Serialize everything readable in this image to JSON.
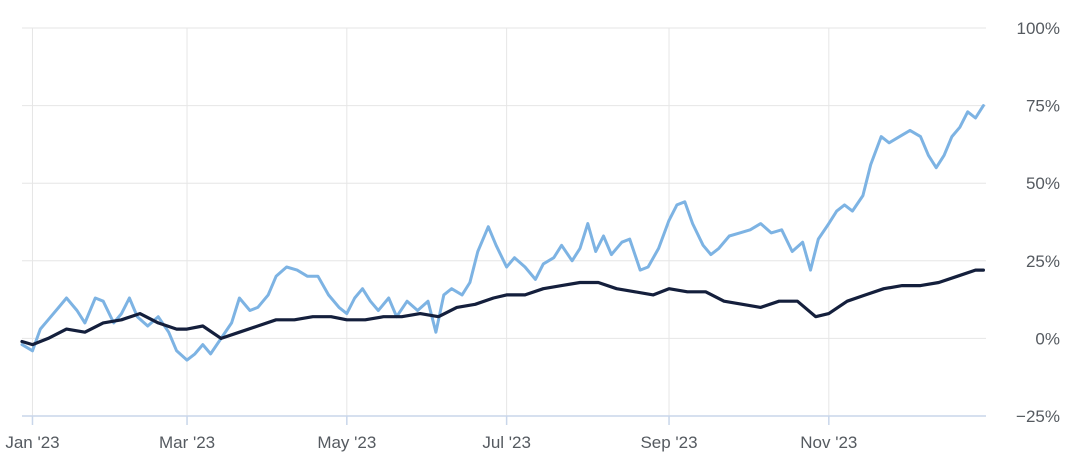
{
  "chart_data": {
    "type": "line",
    "title": "",
    "xlabel": "",
    "ylabel": "",
    "x_range": [
      "2022-12-28",
      "2023-12-31"
    ],
    "y_range": [
      -25,
      100
    ],
    "y_scale": "linear",
    "y_tick_labels": [
      {
        "value": 100,
        "label": "100%"
      },
      {
        "value": 75,
        "label": "75%"
      },
      {
        "value": 50,
        "label": "50%"
      },
      {
        "value": 25,
        "label": "25%"
      },
      {
        "value": 0,
        "label": "0%"
      },
      {
        "value": -25,
        "label": "−25%"
      }
    ],
    "x_tick_labels": [
      {
        "date": "2023-01-01",
        "label": "Jan '23"
      },
      {
        "date": "2023-03-01",
        "label": "Mar '23"
      },
      {
        "date": "2023-05-01",
        "label": "May '23"
      },
      {
        "date": "2023-07-01",
        "label": "Jul '23"
      },
      {
        "date": "2023-09-01",
        "label": "Sep '23"
      },
      {
        "date": "2023-11-01",
        "label": "Nov '23"
      }
    ],
    "grid": true,
    "legend": "none",
    "series": [
      {
        "color": "#7db3e3",
        "points": [
          [
            "2022-12-28",
            -2
          ],
          [
            "2023-01-01",
            -4
          ],
          [
            "2023-01-04",
            3
          ],
          [
            "2023-01-07",
            6
          ],
          [
            "2023-01-11",
            10
          ],
          [
            "2023-01-14",
            13
          ],
          [
            "2023-01-18",
            9
          ],
          [
            "2023-01-21",
            5
          ],
          [
            "2023-01-25",
            13
          ],
          [
            "2023-01-28",
            12
          ],
          [
            "2023-02-01",
            5
          ],
          [
            "2023-02-04",
            8
          ],
          [
            "2023-02-07",
            13
          ],
          [
            "2023-02-10",
            7
          ],
          [
            "2023-02-14",
            4
          ],
          [
            "2023-02-18",
            7
          ],
          [
            "2023-02-22",
            2
          ],
          [
            "2023-02-25",
            -4
          ],
          [
            "2023-03-01",
            -7
          ],
          [
            "2023-03-04",
            -5
          ],
          [
            "2023-03-07",
            -2
          ],
          [
            "2023-03-10",
            -5
          ],
          [
            "2023-03-14",
            0
          ],
          [
            "2023-03-18",
            5
          ],
          [
            "2023-03-21",
            13
          ],
          [
            "2023-03-25",
            9
          ],
          [
            "2023-03-28",
            10
          ],
          [
            "2023-04-01",
            14
          ],
          [
            "2023-04-04",
            20
          ],
          [
            "2023-04-08",
            23
          ],
          [
            "2023-04-12",
            22
          ],
          [
            "2023-04-16",
            20
          ],
          [
            "2023-04-20",
            20
          ],
          [
            "2023-04-24",
            14
          ],
          [
            "2023-04-28",
            10
          ],
          [
            "2023-05-01",
            8
          ],
          [
            "2023-05-04",
            13
          ],
          [
            "2023-05-07",
            16
          ],
          [
            "2023-05-10",
            12
          ],
          [
            "2023-05-13",
            9
          ],
          [
            "2023-05-17",
            13
          ],
          [
            "2023-05-20",
            7
          ],
          [
            "2023-05-24",
            12
          ],
          [
            "2023-05-28",
            9
          ],
          [
            "2023-06-01",
            12
          ],
          [
            "2023-06-04",
            2
          ],
          [
            "2023-06-07",
            14
          ],
          [
            "2023-06-10",
            16
          ],
          [
            "2023-06-14",
            14
          ],
          [
            "2023-06-17",
            18
          ],
          [
            "2023-06-20",
            28
          ],
          [
            "2023-06-24",
            36
          ],
          [
            "2023-06-27",
            30
          ],
          [
            "2023-07-01",
            23
          ],
          [
            "2023-07-04",
            26
          ],
          [
            "2023-07-08",
            23
          ],
          [
            "2023-07-12",
            19
          ],
          [
            "2023-07-15",
            24
          ],
          [
            "2023-07-19",
            26
          ],
          [
            "2023-07-22",
            30
          ],
          [
            "2023-07-26",
            25
          ],
          [
            "2023-07-29",
            29
          ],
          [
            "2023-08-01",
            37
          ],
          [
            "2023-08-04",
            28
          ],
          [
            "2023-08-07",
            33
          ],
          [
            "2023-08-10",
            27
          ],
          [
            "2023-08-14",
            31
          ],
          [
            "2023-08-17",
            32
          ],
          [
            "2023-08-21",
            22
          ],
          [
            "2023-08-24",
            23
          ],
          [
            "2023-08-28",
            29
          ],
          [
            "2023-09-01",
            38
          ],
          [
            "2023-09-04",
            43
          ],
          [
            "2023-09-07",
            44
          ],
          [
            "2023-09-10",
            37
          ],
          [
            "2023-09-14",
            30
          ],
          [
            "2023-09-17",
            27
          ],
          [
            "2023-09-20",
            29
          ],
          [
            "2023-09-24",
            33
          ],
          [
            "2023-09-28",
            34
          ],
          [
            "2023-10-02",
            35
          ],
          [
            "2023-10-06",
            37
          ],
          [
            "2023-10-10",
            34
          ],
          [
            "2023-10-14",
            35
          ],
          [
            "2023-10-18",
            28
          ],
          [
            "2023-10-22",
            31
          ],
          [
            "2023-10-25",
            22
          ],
          [
            "2023-10-28",
            32
          ],
          [
            "2023-11-01",
            37
          ],
          [
            "2023-11-04",
            41
          ],
          [
            "2023-11-07",
            43
          ],
          [
            "2023-11-10",
            41
          ],
          [
            "2023-11-14",
            46
          ],
          [
            "2023-11-17",
            56
          ],
          [
            "2023-11-21",
            65
          ],
          [
            "2023-11-24",
            63
          ],
          [
            "2023-11-28",
            65
          ],
          [
            "2023-12-02",
            67
          ],
          [
            "2023-12-06",
            65
          ],
          [
            "2023-12-09",
            59
          ],
          [
            "2023-12-12",
            55
          ],
          [
            "2023-12-15",
            59
          ],
          [
            "2023-12-18",
            65
          ],
          [
            "2023-12-21",
            68
          ],
          [
            "2023-12-24",
            73
          ],
          [
            "2023-12-27",
            71
          ],
          [
            "2023-12-30",
            75
          ]
        ]
      },
      {
        "color": "#141f3c",
        "points": [
          [
            "2022-12-28",
            -1
          ],
          [
            "2023-01-01",
            -2
          ],
          [
            "2023-01-07",
            0
          ],
          [
            "2023-01-14",
            3
          ],
          [
            "2023-01-21",
            2
          ],
          [
            "2023-01-28",
            5
          ],
          [
            "2023-02-04",
            6
          ],
          [
            "2023-02-11",
            8
          ],
          [
            "2023-02-18",
            5
          ],
          [
            "2023-02-25",
            3
          ],
          [
            "2023-03-01",
            3
          ],
          [
            "2023-03-07",
            4
          ],
          [
            "2023-03-14",
            0
          ],
          [
            "2023-03-21",
            2
          ],
          [
            "2023-03-28",
            4
          ],
          [
            "2023-04-04",
            6
          ],
          [
            "2023-04-11",
            6
          ],
          [
            "2023-04-18",
            7
          ],
          [
            "2023-04-25",
            7
          ],
          [
            "2023-05-01",
            6
          ],
          [
            "2023-05-08",
            6
          ],
          [
            "2023-05-15",
            7
          ],
          [
            "2023-05-22",
            7
          ],
          [
            "2023-05-29",
            8
          ],
          [
            "2023-06-05",
            7
          ],
          [
            "2023-06-12",
            10
          ],
          [
            "2023-06-19",
            11
          ],
          [
            "2023-06-26",
            13
          ],
          [
            "2023-07-01",
            14
          ],
          [
            "2023-07-08",
            14
          ],
          [
            "2023-07-15",
            16
          ],
          [
            "2023-07-22",
            17
          ],
          [
            "2023-07-29",
            18
          ],
          [
            "2023-08-05",
            18
          ],
          [
            "2023-08-12",
            16
          ],
          [
            "2023-08-19",
            15
          ],
          [
            "2023-08-26",
            14
          ],
          [
            "2023-09-01",
            16
          ],
          [
            "2023-09-08",
            15
          ],
          [
            "2023-09-15",
            15
          ],
          [
            "2023-09-22",
            12
          ],
          [
            "2023-09-29",
            11
          ],
          [
            "2023-10-06",
            10
          ],
          [
            "2023-10-13",
            12
          ],
          [
            "2023-10-20",
            12
          ],
          [
            "2023-10-27",
            7
          ],
          [
            "2023-11-01",
            8
          ],
          [
            "2023-11-08",
            12
          ],
          [
            "2023-11-15",
            14
          ],
          [
            "2023-11-22",
            16
          ],
          [
            "2023-11-29",
            17
          ],
          [
            "2023-12-06",
            17
          ],
          [
            "2023-12-13",
            18
          ],
          [
            "2023-12-20",
            20
          ],
          [
            "2023-12-27",
            22
          ],
          [
            "2023-12-30",
            22
          ]
        ]
      }
    ]
  }
}
